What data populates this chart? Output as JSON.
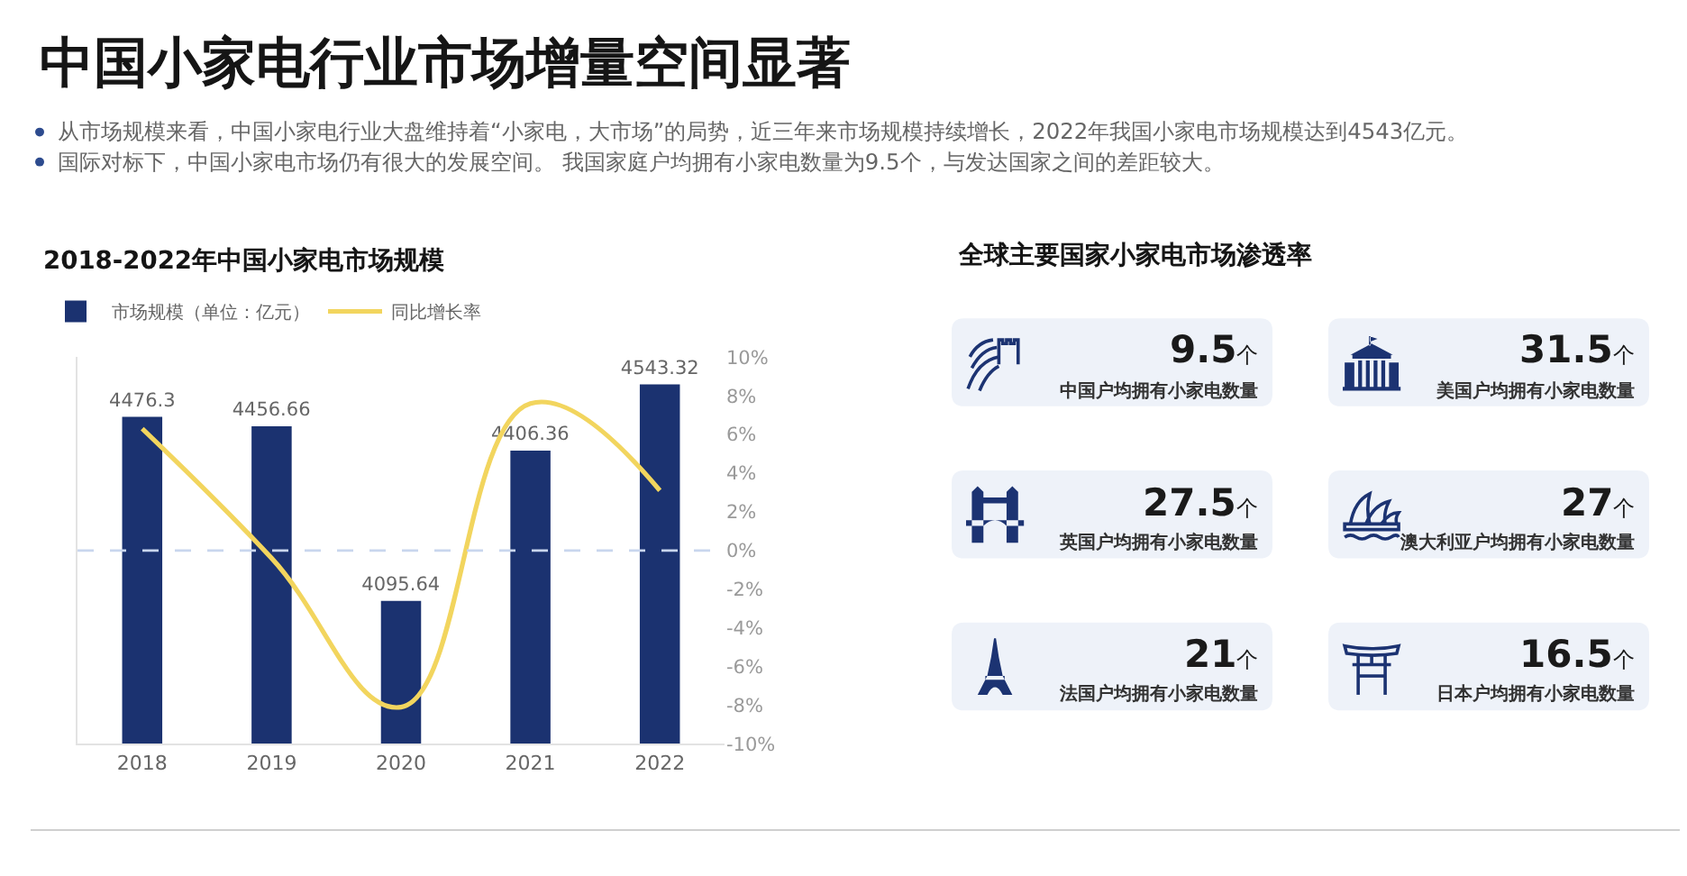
{
  "chart_data": [
    {
      "type": "other",
      "title": "中国小家电行业市场增量空间显著",
      "annotations": [
        "从市场规模来看，中国小家电行业大盘维持着“小家电，大市场”的局势，近三年来市场规模持续增长，2022年我国小家电市场规模达到4543亿元。",
        "国际对标下，中国小家电市场仍有很大的发展空间。 我国家庭户均拥有小家电数量为9.5个，与发达国家之间的差距较大。"
      ]
    },
    {
      "type": "bar",
      "title": "2018-2022年中国小家电市场规模",
      "categories": [
        "2018",
        "2019",
        "2020",
        "2021",
        "2022"
      ],
      "series": [
        {
          "name": "市场规模（单位：亿元）",
          "type": "bar",
          "color": "#1b3270",
          "values": [
            4476.3,
            4456.66,
            4095.64,
            4406.36,
            4543.32
          ],
          "value_labels": [
            "4476.3",
            "4456.66",
            "4095.64",
            "4406.36",
            "4543.32"
          ]
        },
        {
          "name": "同比增长率",
          "type": "line",
          "axis": "y2",
          "color": "#f2d55e",
          "values": [
            6.3,
            -0.4,
            -8.1,
            7.6,
            3.1
          ]
        }
      ],
      "ylim": [
        3800,
        4600
      ],
      "y2lim": [
        -10,
        10
      ],
      "y2ticks": [
        {
          "value": 10,
          "label": "10%"
        },
        {
          "value": 8,
          "label": "8%"
        },
        {
          "value": 6,
          "label": "6%"
        },
        {
          "value": 4,
          "label": "4%"
        },
        {
          "value": 2,
          "label": "2%"
        },
        {
          "value": 0,
          "label": "0%"
        },
        {
          "value": -2,
          "label": "-2%"
        },
        {
          "value": -4,
          "label": "-4%"
        },
        {
          "value": -6,
          "label": "-6%"
        },
        {
          "value": -8,
          "label": "-8%"
        },
        {
          "value": -10,
          "label": "-10%"
        }
      ],
      "ref_lines": [
        {
          "axis": "y2",
          "value": 0,
          "color": "#c9d6ee",
          "line_style": "dashed"
        }
      ],
      "legend": "top left"
    },
    {
      "type": "other",
      "title": "全球主要国家小家电市场渗透率",
      "categories": [
        "中国户均拥有小家电数量",
        "美国户均拥有小家电数量",
        "英国户均拥有小家电数量",
        "澳大利亚户均拥有小家电数量",
        "法国户均拥有小家电数量",
        "日本户均拥有小家电数量"
      ],
      "values": [
        9.5,
        31.5,
        27.5,
        27,
        21,
        16.5
      ],
      "value_labels": [
        "9.5个",
        "31.5个",
        "27.5个",
        "27个",
        "21个",
        "16.5个"
      ]
    }
  ]
}
